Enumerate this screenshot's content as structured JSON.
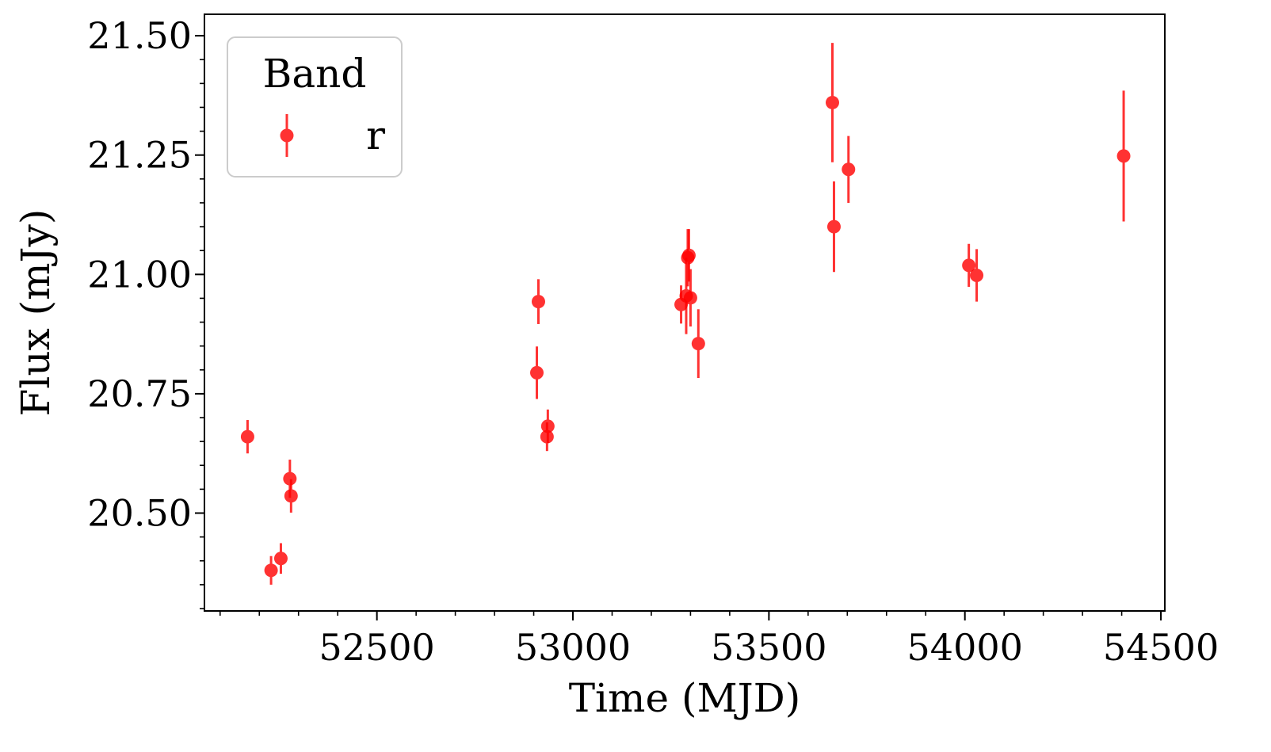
{
  "chart_data": {
    "type": "scatter",
    "title": "",
    "xlabel": "Time (MJD)",
    "ylabel": "Flux (mJy)",
    "xlim": [
      52060,
      54510
    ],
    "ylim": [
      20.295,
      21.545
    ],
    "x_ticks": [
      52500,
      53000,
      53500,
      54000,
      54500
    ],
    "x_tick_labels": [
      "52500",
      "53000",
      "53500",
      "54000",
      "54500"
    ],
    "y_ticks": [
      20.5,
      20.75,
      21.0,
      21.25,
      21.5
    ],
    "y_tick_labels": [
      "20.50",
      "20.75",
      "21.00",
      "21.25",
      "21.50"
    ],
    "x_minor_step": 100,
    "y_minor_step": 0.05,
    "grid": false,
    "legend": {
      "title": "Band",
      "placement": "upper-left"
    },
    "series": [
      {
        "name": "r",
        "color": "#ff0000",
        "opacity": 0.8,
        "points": [
          {
            "x": 52170,
            "y": 20.66,
            "err": 0.035
          },
          {
            "x": 52230,
            "y": 20.38,
            "err": 0.03
          },
          {
            "x": 52255,
            "y": 20.405,
            "err": 0.032
          },
          {
            "x": 52278,
            "y": 20.572,
            "err": 0.04
          },
          {
            "x": 52281,
            "y": 20.536,
            "err": 0.035
          },
          {
            "x": 52908,
            "y": 20.794,
            "err": 0.055
          },
          {
            "x": 52912,
            "y": 20.943,
            "err": 0.047
          },
          {
            "x": 52934,
            "y": 20.66,
            "err": 0.03
          },
          {
            "x": 52936,
            "y": 20.682,
            "err": 0.035
          },
          {
            "x": 53276,
            "y": 20.937,
            "err": 0.04
          },
          {
            "x": 53289,
            "y": 20.955,
            "err": 0.08
          },
          {
            "x": 53293,
            "y": 21.035,
            "err": 0.06
          },
          {
            "x": 53296,
            "y": 21.04,
            "err": 0.055
          },
          {
            "x": 53300,
            "y": 20.951,
            "err": 0.06
          },
          {
            "x": 53320,
            "y": 20.855,
            "err": 0.072
          },
          {
            "x": 53662,
            "y": 21.36,
            "err": 0.125
          },
          {
            "x": 53666,
            "y": 21.1,
            "err": 0.095
          },
          {
            "x": 53703,
            "y": 21.22,
            "err": 0.07
          },
          {
            "x": 54010,
            "y": 21.019,
            "err": 0.045
          },
          {
            "x": 54030,
            "y": 20.998,
            "err": 0.055
          },
          {
            "x": 54405,
            "y": 21.248,
            "err": 0.137
          }
        ]
      }
    ]
  }
}
